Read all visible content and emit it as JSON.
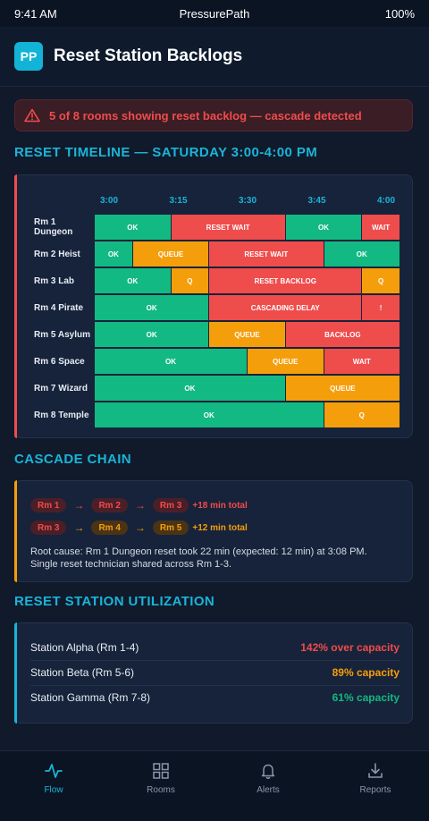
{
  "status_bar": {
    "time": "9:41 AM",
    "app": "PressurePath",
    "battery": "100%"
  },
  "header": {
    "logo": "PP",
    "title": "Reset Station Backlogs"
  },
  "alert": {
    "icon": "warning-triangle-icon",
    "text": "5 of 8 rooms showing reset backlog — cascade detected"
  },
  "timeline": {
    "title": "RESET TIMELINE — SATURDAY 3:00-4:00 PM",
    "ticks": [
      "3:00",
      "3:15",
      "3:30",
      "3:45",
      "4:00"
    ],
    "rooms": [
      {
        "label": "Rm 1 Dungeon",
        "segments": [
          {
            "text": "OK",
            "status": "ok",
            "start": 0,
            "end": 10
          },
          {
            "text": "RESET WAIT",
            "status": "wait",
            "start": 10,
            "end": 25
          },
          {
            "text": "OK",
            "status": "ok",
            "start": 25,
            "end": 35
          },
          {
            "text": "WAIT",
            "status": "wait",
            "start": 35,
            "end": 40
          }
        ]
      },
      {
        "label": "Rm 2 Heist",
        "segments": [
          {
            "text": "OK",
            "status": "ok",
            "start": 0,
            "end": 5
          },
          {
            "text": "QUEUE",
            "status": "queue",
            "start": 5,
            "end": 15
          },
          {
            "text": "RESET WAIT",
            "status": "wait",
            "start": 15,
            "end": 30
          },
          {
            "text": "OK",
            "status": "ok",
            "start": 30,
            "end": 40
          }
        ]
      },
      {
        "label": "Rm 3 Lab",
        "segments": [
          {
            "text": "OK",
            "status": "ok",
            "start": 0,
            "end": 10
          },
          {
            "text": "Q",
            "status": "queue",
            "start": 10,
            "end": 15
          },
          {
            "text": "RESET BACKLOG",
            "status": "wait",
            "start": 15,
            "end": 35
          },
          {
            "text": "Q",
            "status": "queue",
            "start": 35,
            "end": 40
          }
        ]
      },
      {
        "label": "Rm 4 Pirate",
        "segments": [
          {
            "text": "OK",
            "status": "ok",
            "start": 0,
            "end": 15
          },
          {
            "text": "CASCADING DELAY",
            "status": "wait",
            "start": 15,
            "end": 35
          },
          {
            "text": "!",
            "status": "wait",
            "start": 35,
            "end": 40
          }
        ]
      },
      {
        "label": "Rm 5 Asylum",
        "segments": [
          {
            "text": "OK",
            "status": "ok",
            "start": 0,
            "end": 15
          },
          {
            "text": "QUEUE",
            "status": "queue",
            "start": 15,
            "end": 25
          },
          {
            "text": "BACKLOG",
            "status": "wait",
            "start": 25,
            "end": 40
          }
        ]
      },
      {
        "label": "Rm 6 Space",
        "segments": [
          {
            "text": "OK",
            "status": "ok",
            "start": 0,
            "end": 20
          },
          {
            "text": "QUEUE",
            "status": "queue",
            "start": 20,
            "end": 30
          },
          {
            "text": "WAIT",
            "status": "wait",
            "start": 30,
            "end": 40
          }
        ]
      },
      {
        "label": "Rm 7 Wizard",
        "segments": [
          {
            "text": "OK",
            "status": "ok",
            "start": 0,
            "end": 25
          },
          {
            "text": "QUEUE",
            "status": "queue",
            "start": 25,
            "end": 40
          }
        ]
      },
      {
        "label": "Rm 8 Temple",
        "segments": [
          {
            "text": "OK",
            "status": "ok",
            "start": 0,
            "end": 30
          },
          {
            "text": "Q",
            "status": "queue",
            "start": 30,
            "end": 40
          }
        ]
      }
    ]
  },
  "cascade": {
    "title": "CASCADE CHAIN",
    "chains": [
      {
        "rooms": [
          {
            "label": "Rm 1",
            "color": "red"
          },
          {
            "label": "Rm 2",
            "color": "red"
          },
          {
            "label": "Rm 3",
            "color": "red"
          }
        ],
        "total": "+18 min total",
        "color": "red"
      },
      {
        "rooms": [
          {
            "label": "Rm 3",
            "color": "red"
          },
          {
            "label": "Rm 4",
            "color": "amber"
          },
          {
            "label": "Rm 5",
            "color": "amber"
          }
        ],
        "total": "+12 min total",
        "color": "amber"
      }
    ],
    "root_cause_line1": "Root cause: Rm 1 Dungeon reset took 22 min (expected: 12 min) at 3:08 PM.",
    "root_cause_line2": "Single reset technician shared across Rm 1-3."
  },
  "utilization": {
    "title": "RESET STATION UTILIZATION",
    "stations": [
      {
        "name": "Station Alpha (Rm 1-4)",
        "value": "142% over capacity",
        "color": "#ef4c4c"
      },
      {
        "name": "Station Beta (Rm 5-6)",
        "value": "89% capacity",
        "color": "#f59e0b"
      },
      {
        "name": "Station Gamma (Rm 7-8)",
        "value": "61% capacity",
        "color": "#13b983"
      }
    ]
  },
  "nav": {
    "items": [
      {
        "label": "Flow",
        "icon": "activity-icon",
        "active": true
      },
      {
        "label": "Rooms",
        "icon": "grid-icon",
        "active": false
      },
      {
        "label": "Alerts",
        "icon": "bell-icon",
        "active": false
      },
      {
        "label": "Reports",
        "icon": "download-icon",
        "active": false
      }
    ]
  },
  "colors": {
    "accent": "#1ab4d8",
    "ok": "#13b983",
    "wait": "#ef4c4c",
    "queue": "#f59e0b"
  }
}
